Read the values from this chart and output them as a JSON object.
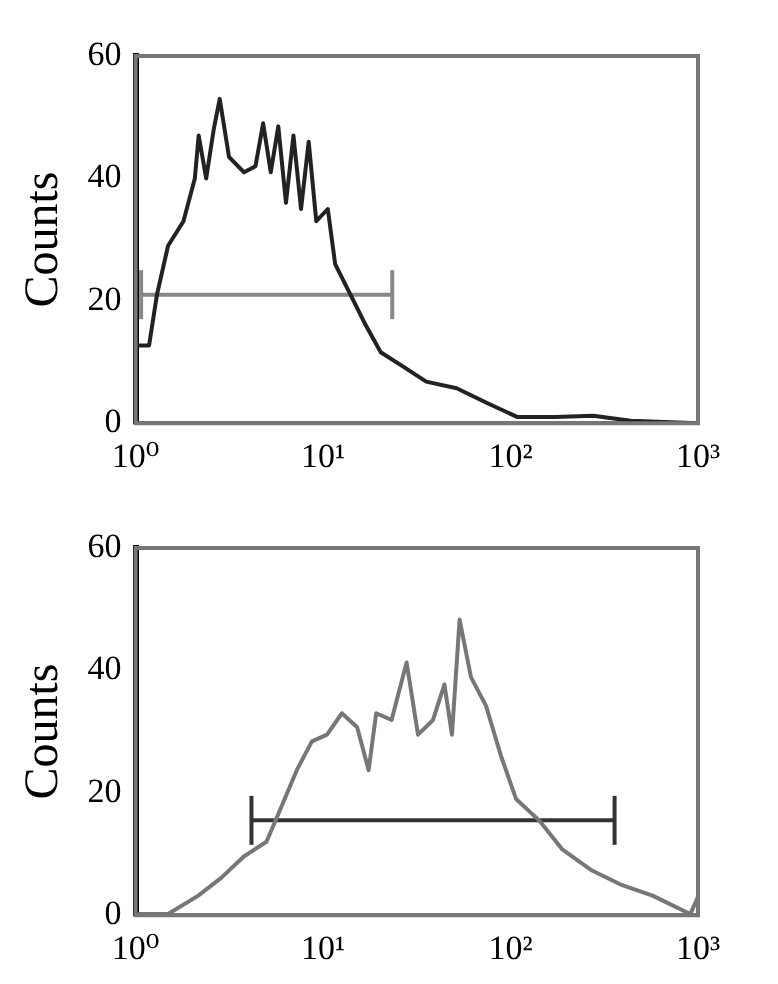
{
  "chart_data": [
    {
      "type": "line",
      "ylabel": "Counts",
      "log": "x",
      "grid": false,
      "legend": false,
      "marker": "none",
      "xlim": [
        1,
        1000
      ],
      "ylim": [
        0,
        60
      ],
      "xticks": [
        {
          "value": 1,
          "label": "10⁰"
        },
        {
          "value": 10,
          "label": "10¹"
        },
        {
          "value": 100,
          "label": "10²"
        },
        {
          "value": 1000,
          "label": "10³"
        }
      ],
      "yticks": [
        0,
        20,
        40,
        60
      ],
      "series": [
        {
          "color": "#222222",
          "x": [
            1.03,
            1.18,
            1.3,
            1.49,
            1.8,
            2.07,
            2.17,
            2.38,
            2.61,
            2.81,
            3.15,
            3.79,
            4.36,
            4.79,
            5.26,
            5.77,
            6.34,
            6.95,
            7.63,
            8.38,
            9.2,
            10.6,
            11.6,
            14,
            16.9,
            20.3,
            26.9,
            35.5,
            51.6,
            74.9,
            109,
            173,
            276,
            437,
            1000
          ],
          "values": [
            12.7,
            12.7,
            21,
            29,
            33,
            40,
            47,
            40,
            48,
            53,
            43.5,
            41,
            42,
            49,
            41,
            48.5,
            36,
            47,
            35,
            46,
            33,
            35,
            26,
            21,
            16,
            11.6,
            9.2,
            6.8,
            5.7,
            3.3,
            1,
            1,
            1.2,
            0.4,
            0
          ]
        },
        {
          "color": "#888888",
          "x": [
            1.07,
            23.4
          ],
          "values": [
            21,
            21
          ],
          "errors": [
            4,
            4
          ]
        }
      ]
    },
    {
      "type": "line",
      "ylabel": "Counts",
      "log": "x",
      "grid": false,
      "legend": false,
      "marker": "none",
      "xlim": [
        1,
        1000
      ],
      "ylim": [
        0,
        60
      ],
      "xticks": [
        {
          "value": 1,
          "label": "10⁰"
        },
        {
          "value": 10,
          "label": "10¹"
        },
        {
          "value": 100,
          "label": "10²"
        },
        {
          "value": 1000,
          "label": "10³"
        }
      ],
      "yticks": [
        0,
        20,
        40,
        60
      ],
      "series": [
        {
          "color": "#777777",
          "x": [
            1.03,
            1.49,
            2.16,
            2.86,
            3.78,
            4.99,
            6.01,
            7.24,
            8.72,
            10.5,
            12.6,
            15.2,
            17.5,
            19.2,
            23.2,
            27.9,
            32.1,
            38.6,
            44.4,
            48.7,
            53.5,
            61.5,
            74,
            89,
            107,
            142,
            188,
            272,
            394,
            572,
            910,
            1000
          ],
          "values": [
            0.2,
            0.2,
            3.2,
            6.1,
            9.6,
            12,
            17.8,
            23.7,
            28.4,
            29.5,
            33,
            30.7,
            23.7,
            33,
            31.9,
            41.3,
            29.5,
            31.9,
            37.7,
            29.5,
            48.3,
            38.9,
            34.2,
            26,
            19,
            15.5,
            10.8,
            7.3,
            4.9,
            3.2,
            0.2,
            3
          ]
        },
        {
          "color": "#333333",
          "x": [
            4.15,
            359
          ],
          "values": [
            15.5,
            15.5
          ],
          "errors": [
            4,
            4
          ]
        }
      ]
    }
  ]
}
